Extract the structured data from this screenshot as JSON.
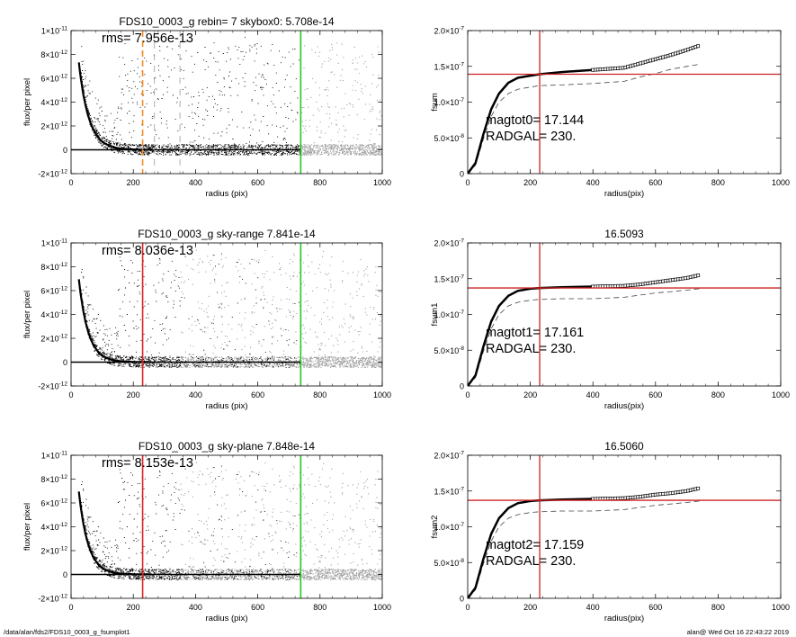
{
  "footer": {
    "path": "/data/alan/fds2/FDS10_0003_g_fsumplot1",
    "stamp": "alan@  Wed Oct 16 22:43:22 2019"
  },
  "chart_data": [
    {
      "type": "scatter",
      "title": "FDS10_0003_g rebin= 7    skybox0:  5.708e-14",
      "xlabel": "radius (pix)",
      "ylabel": "flux/per pixel",
      "xlim": [
        0,
        1000
      ],
      "ylim": [
        -2e-12,
        1e-11
      ],
      "xticks": [
        "0",
        "200",
        "400",
        "600",
        "800",
        "1000"
      ],
      "yticks": [
        {
          "mant": "-2×10",
          "exp": "-12"
        },
        {
          "mant": "0",
          "exp": ""
        },
        {
          "mant": "2×10",
          "exp": "-12"
        },
        {
          "mant": "4×10",
          "exp": "-12"
        },
        {
          "mant": "6×10",
          "exp": "-12"
        },
        {
          "mant": "8×10",
          "exp": "-12"
        },
        {
          "mant": "1×10",
          "exp": "-11"
        }
      ],
      "annotation": "rms= 7.956e-13",
      "profile_scale_pix": 32,
      "vlines": [
        {
          "x": 230,
          "color": "#f28c28",
          "style": "dashed"
        },
        {
          "x": 268,
          "color": "#999999",
          "style": "dashed"
        },
        {
          "x": 350,
          "color": "#999999",
          "style": "dashed"
        },
        {
          "x": 738,
          "color": "#22cc22",
          "style": "solid"
        }
      ],
      "hlines": [
        {
          "y": 0,
          "color": "#000000",
          "x_range": [
            0,
            738
          ]
        }
      ],
      "gray_region": [
        738,
        1000
      ]
    },
    {
      "type": "line",
      "title": "",
      "xlabel": "radius(pix)",
      "ylabel": "fsum",
      "xlim": [
        0,
        1000
      ],
      "ylim": [
        0,
        2e-07
      ],
      "xticks": [
        "0",
        "200",
        "400",
        "600",
        "800",
        "1000"
      ],
      "yticks": [
        {
          "mant": "0",
          "exp": ""
        },
        {
          "mant": "5.0×10",
          "exp": "-8"
        },
        {
          "mant": "1.0×10",
          "exp": "-7"
        },
        {
          "mant": "1.5×10",
          "exp": "-7"
        },
        {
          "mant": "2.0×10",
          "exp": "-7"
        }
      ],
      "annotations": [
        "magtot0=  17.144",
        "RADGAL=    230."
      ],
      "vline": {
        "x": 230,
        "color": "#cc2222"
      },
      "hline": {
        "y": 1.39e-07,
        "color": "#cc2222"
      },
      "curve": {
        "x": [
          0,
          25,
          50,
          75,
          100,
          130,
          160,
          200,
          230,
          300,
          400,
          500,
          550,
          600,
          650,
          700,
          740
        ],
        "y": [
          0,
          1.5e-08,
          5.5e-08,
          9e-08,
          1.12e-07,
          1.27e-07,
          1.34e-07,
          1.37e-07,
          1.39e-07,
          1.42e-07,
          1.45e-07,
          1.48e-07,
          1.54e-07,
          1.6e-07,
          1.66e-07,
          1.73e-07,
          1.79e-07
        ]
      },
      "dashed": {
        "x": [
          0,
          25,
          50,
          75,
          100,
          130,
          160,
          200,
          230,
          300,
          400,
          500,
          550,
          600,
          650,
          700,
          740
        ],
        "y": [
          0,
          1.2e-08,
          4.8e-08,
          8e-08,
          1e-07,
          1.12e-07,
          1.18e-07,
          1.21e-07,
          1.23e-07,
          1.24e-07,
          1.26e-07,
          1.29e-07,
          1.35e-07,
          1.4e-07,
          1.46e-07,
          1.5e-07,
          1.53e-07
        ]
      }
    },
    {
      "type": "scatter",
      "title": "FDS10_0003_g sky-range  7.841e-14",
      "xlabel": "radius (pix)",
      "ylabel": "flux/per pixel",
      "xlim": [
        0,
        1000
      ],
      "ylim": [
        -2e-12,
        1e-11
      ],
      "xticks": [
        "0",
        "200",
        "400",
        "600",
        "800",
        "1000"
      ],
      "yticks": [
        {
          "mant": "-2×10",
          "exp": "-12"
        },
        {
          "mant": "0",
          "exp": ""
        },
        {
          "mant": "2×10",
          "exp": "-12"
        },
        {
          "mant": "4×10",
          "exp": "-12"
        },
        {
          "mant": "6×10",
          "exp": "-12"
        },
        {
          "mant": "8×10",
          "exp": "-12"
        },
        {
          "mant": "1×10",
          "exp": "-11"
        }
      ],
      "annotation": "rms= 8.036e-13",
      "profile_scale_pix": 30,
      "vlines": [
        {
          "x": 230,
          "color": "#dd2222",
          "style": "solid"
        },
        {
          "x": 738,
          "color": "#22cc22",
          "style": "solid"
        }
      ],
      "hlines": [
        {
          "y": 0,
          "color": "#000000",
          "x_range": [
            0,
            738
          ]
        }
      ],
      "gray_region": [
        350,
        1000
      ]
    },
    {
      "type": "line",
      "title": "16.5093",
      "xlabel": "radius(pix)",
      "ylabel": "fsum1",
      "xlim": [
        0,
        1000
      ],
      "ylim": [
        0,
        2e-07
      ],
      "xticks": [
        "0",
        "200",
        "400",
        "600",
        "800",
        "1000"
      ],
      "yticks": [
        {
          "mant": "0",
          "exp": ""
        },
        {
          "mant": "5.0×10",
          "exp": "-8"
        },
        {
          "mant": "1.0×10",
          "exp": "-7"
        },
        {
          "mant": "1.5×10",
          "exp": "-7"
        },
        {
          "mant": "2.0×10",
          "exp": "-7"
        }
      ],
      "annotations": [
        "magtot1=  17.161",
        "RADGAL=    230."
      ],
      "vline": {
        "x": 230,
        "color": "#cc2222"
      },
      "hline": {
        "y": 1.37e-07,
        "color": "#cc2222"
      },
      "curve": {
        "x": [
          0,
          25,
          50,
          75,
          100,
          130,
          160,
          200,
          230,
          300,
          400,
          500,
          550,
          600,
          650,
          700,
          740
        ],
        "y": [
          0,
          1.5e-08,
          5.5e-08,
          9e-08,
          1.12e-07,
          1.26e-07,
          1.33e-07,
          1.36e-07,
          1.37e-07,
          1.38e-07,
          1.39e-07,
          1.4e-07,
          1.42e-07,
          1.45e-07,
          1.48e-07,
          1.51e-07,
          1.55e-07
        ]
      },
      "dashed": {
        "x": [
          0,
          25,
          50,
          75,
          100,
          130,
          160,
          200,
          230,
          300,
          400,
          500,
          550,
          600,
          650,
          700,
          740
        ],
        "y": [
          0,
          1.2e-08,
          4.8e-08,
          8e-08,
          1e-07,
          1.12e-07,
          1.17e-07,
          1.2e-07,
          1.21e-07,
          1.22e-07,
          1.22e-07,
          1.24e-07,
          1.27e-07,
          1.3e-07,
          1.32e-07,
          1.34e-07,
          1.36e-07
        ]
      }
    },
    {
      "type": "scatter",
      "title": "FDS10_0003_g sky-plane  7.848e-14",
      "xlabel": "radius (pix)",
      "ylabel": "flux/per pixel",
      "xlim": [
        0,
        1000
      ],
      "ylim": [
        -2e-12,
        1e-11
      ],
      "xticks": [
        "0",
        "200",
        "400",
        "600",
        "800",
        "1000"
      ],
      "yticks": [
        {
          "mant": "-2×10",
          "exp": "-12"
        },
        {
          "mant": "0",
          "exp": ""
        },
        {
          "mant": "2×10",
          "exp": "-12"
        },
        {
          "mant": "4×10",
          "exp": "-12"
        },
        {
          "mant": "6×10",
          "exp": "-12"
        },
        {
          "mant": "8×10",
          "exp": "-12"
        },
        {
          "mant": "1×10",
          "exp": "-11"
        }
      ],
      "annotation": "rms= 8.153e-13",
      "profile_scale_pix": 30,
      "vlines": [
        {
          "x": 230,
          "color": "#dd2222",
          "style": "solid"
        },
        {
          "x": 738,
          "color": "#22cc22",
          "style": "solid"
        }
      ],
      "hlines": [
        {
          "y": 0,
          "color": "#000000",
          "x_range": [
            0,
            738
          ]
        }
      ],
      "gray_region": [
        350,
        1000
      ]
    },
    {
      "type": "line",
      "title": "16.5060",
      "xlabel": "radius(pix)",
      "ylabel": "fsum2",
      "xlim": [
        0,
        1000
      ],
      "ylim": [
        0,
        2e-07
      ],
      "xticks": [
        "0",
        "200",
        "400",
        "600",
        "800",
        "1000"
      ],
      "yticks": [
        {
          "mant": "0",
          "exp": ""
        },
        {
          "mant": "5.0×10",
          "exp": "-8"
        },
        {
          "mant": "1.0×10",
          "exp": "-7"
        },
        {
          "mant": "1.5×10",
          "exp": "-7"
        },
        {
          "mant": "2.0×10",
          "exp": "-7"
        }
      ],
      "annotations": [
        "magtot2=  17.159",
        "RADGAL=    230."
      ],
      "vline": {
        "x": 230,
        "color": "#cc2222"
      },
      "hline": {
        "y": 1.37e-07,
        "color": "#cc2222"
      },
      "curve": {
        "x": [
          0,
          25,
          50,
          75,
          100,
          130,
          160,
          200,
          230,
          300,
          400,
          500,
          550,
          600,
          650,
          700,
          740
        ],
        "y": [
          0,
          1.5e-08,
          5.5e-08,
          9e-08,
          1.12e-07,
          1.26e-07,
          1.33e-07,
          1.36e-07,
          1.37e-07,
          1.38e-07,
          1.39e-07,
          1.4e-07,
          1.42e-07,
          1.45e-07,
          1.47e-07,
          1.5e-07,
          1.54e-07
        ]
      },
      "dashed": {
        "x": [
          0,
          25,
          50,
          75,
          100,
          130,
          160,
          200,
          230,
          300,
          400,
          500,
          550,
          600,
          650,
          700,
          740
        ],
        "y": [
          0,
          1.2e-08,
          4.8e-08,
          8e-08,
          1e-07,
          1.12e-07,
          1.17e-07,
          1.2e-07,
          1.21e-07,
          1.22e-07,
          1.22e-07,
          1.24e-07,
          1.27e-07,
          1.3e-07,
          1.32e-07,
          1.34e-07,
          1.36e-07
        ]
      }
    }
  ]
}
